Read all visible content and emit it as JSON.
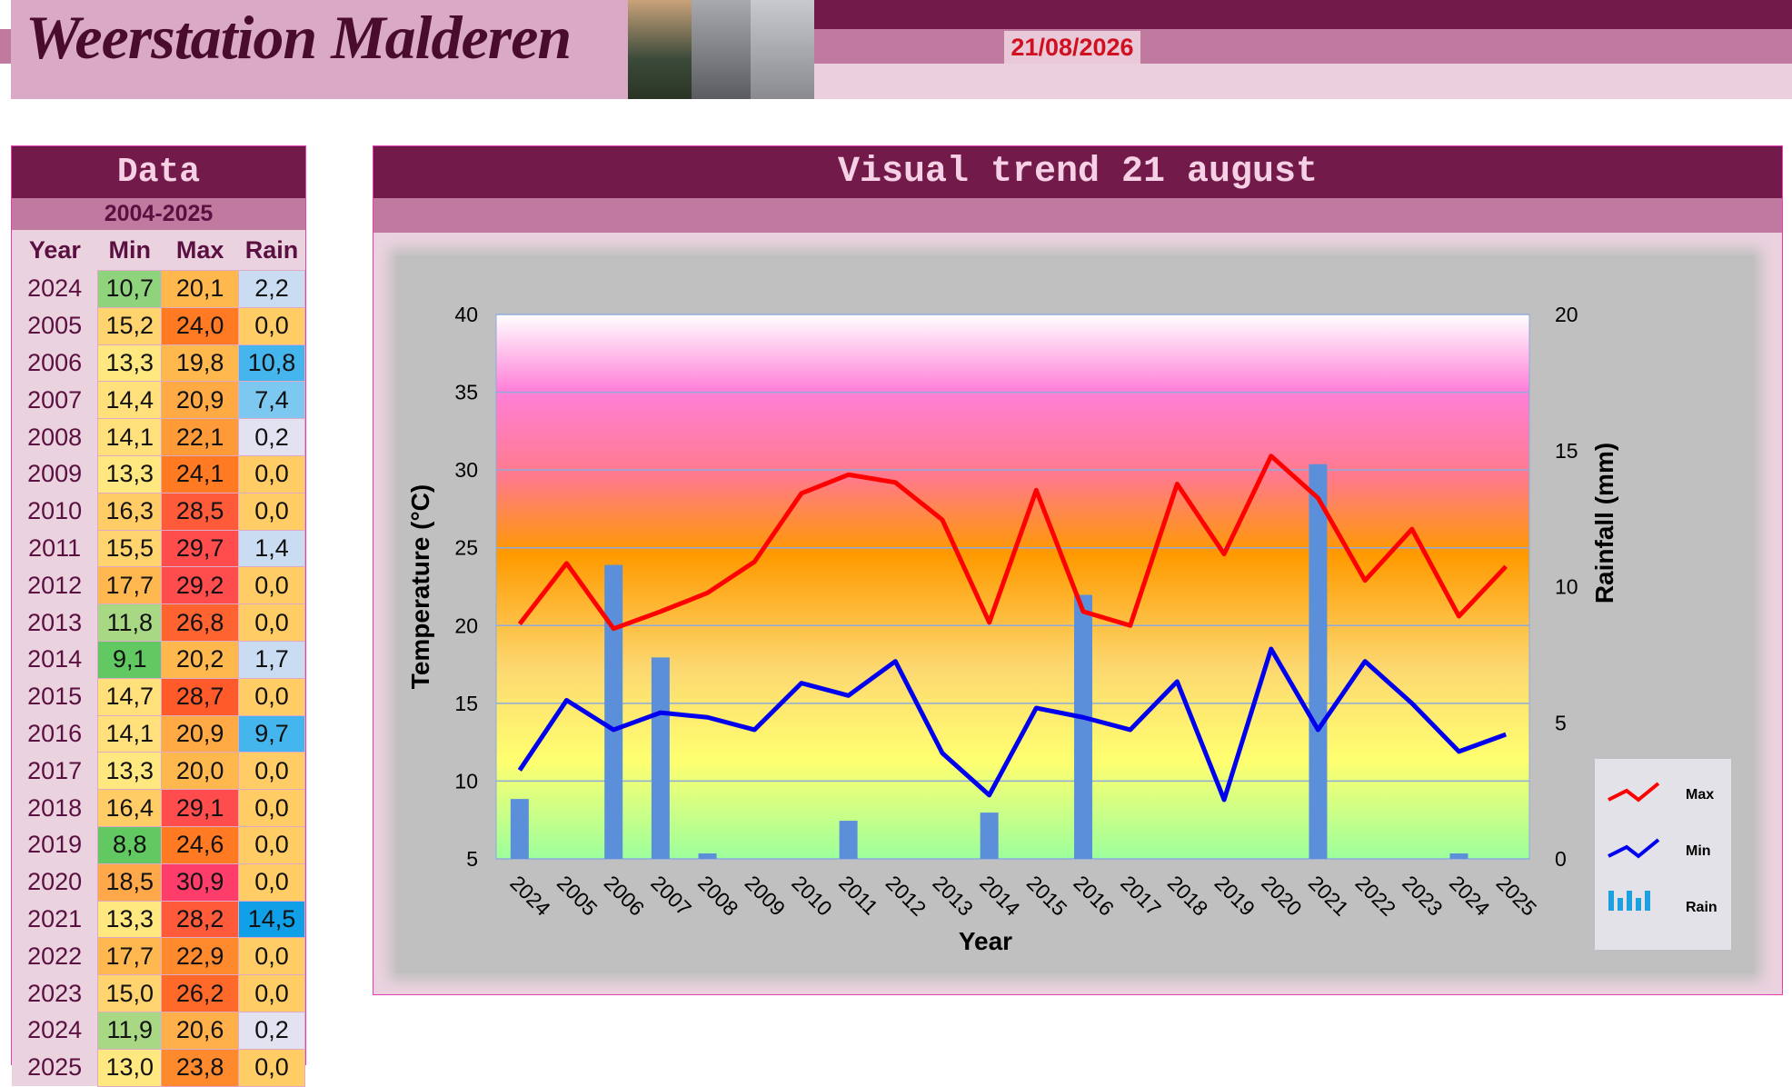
{
  "header": {
    "title": "Weerstation Malderen",
    "date": "21/08/2026"
  },
  "table": {
    "title": "Data",
    "period": "2004-2025",
    "columns": [
      "Year",
      "Min",
      "Max",
      "Rain"
    ],
    "rows": [
      [
        "2024",
        "10,7",
        "20,1",
        "2,2"
      ],
      [
        "2005",
        "15,2",
        "24,0",
        "0,0"
      ],
      [
        "2006",
        "13,3",
        "19,8",
        "10,8"
      ],
      [
        "2007",
        "14,4",
        "20,9",
        "7,4"
      ],
      [
        "2008",
        "14,1",
        "22,1",
        "0,2"
      ],
      [
        "2009",
        "13,3",
        "24,1",
        "0,0"
      ],
      [
        "2010",
        "16,3",
        "28,5",
        "0,0"
      ],
      [
        "2011",
        "15,5",
        "29,7",
        "1,4"
      ],
      [
        "2012",
        "17,7",
        "29,2",
        "0,0"
      ],
      [
        "2013",
        "11,8",
        "26,8",
        "0,0"
      ],
      [
        "2014",
        "9,1",
        "20,2",
        "1,7"
      ],
      [
        "2015",
        "14,7",
        "28,7",
        "0,0"
      ],
      [
        "2016",
        "14,1",
        "20,9",
        "9,7"
      ],
      [
        "2017",
        "13,3",
        "20,0",
        "0,0"
      ],
      [
        "2018",
        "16,4",
        "29,1",
        "0,0"
      ],
      [
        "2019",
        "8,8",
        "24,6",
        "0,0"
      ],
      [
        "2020",
        "18,5",
        "30,9",
        "0,0"
      ],
      [
        "2021",
        "13,3",
        "28,2",
        "14,5"
      ],
      [
        "2022",
        "17,7",
        "22,9",
        "0,0"
      ],
      [
        "2023",
        "15,0",
        "26,2",
        "0,0"
      ],
      [
        "2024",
        "11,9",
        "20,6",
        "0,2"
      ],
      [
        "2025",
        "13,0",
        "23,8",
        "0,0"
      ]
    ],
    "cell_colors": [
      [
        "#8fd47c",
        "#ffb84d",
        "#c9dcf2"
      ],
      [
        "#ffd36e",
        "#ff7a22",
        "#ffcc66"
      ],
      [
        "#ffe880",
        "#ffb84d",
        "#45b5ee"
      ],
      [
        "#ffe07a",
        "#ffaa44",
        "#7cc8f0"
      ],
      [
        "#ffe07a",
        "#ff9a38",
        "#e2e2f0"
      ],
      [
        "#ffe880",
        "#ff7a22",
        "#ffcc66"
      ],
      [
        "#ffcc66",
        "#ff5a3a",
        "#ffcc66"
      ],
      [
        "#ffd36e",
        "#ff4c4c",
        "#c9dcf2"
      ],
      [
        "#ffb850",
        "#ff4c4c",
        "#ffcc66"
      ],
      [
        "#a8d884",
        "#ff6430",
        "#ffcc66"
      ],
      [
        "#62c862",
        "#ffb84d",
        "#c9dcf2"
      ],
      [
        "#ffe07a",
        "#ff5a2a",
        "#ffcc66"
      ],
      [
        "#ffe07a",
        "#ffaa44",
        "#45b5ee"
      ],
      [
        "#ffe880",
        "#ffb84d",
        "#ffcc66"
      ],
      [
        "#ffcc66",
        "#ff4c4c",
        "#ffcc66"
      ],
      [
        "#62c862",
        "#ff7a22",
        "#ffcc66"
      ],
      [
        "#ffa84a",
        "#ff3d6a",
        "#ffcc66"
      ],
      [
        "#ffe880",
        "#ff5a3a",
        "#10a0e8"
      ],
      [
        "#ffb850",
        "#ff8a2e",
        "#ffcc66"
      ],
      [
        "#ffd36e",
        "#ff6a2a",
        "#ffcc66"
      ],
      [
        "#a8d884",
        "#ffb04a",
        "#e2e2f0"
      ],
      [
        "#ffe880",
        "#ff8a2e",
        "#ffcc66"
      ]
    ]
  },
  "chart_data": {
    "type": "line",
    "title": "Visual trend 21 august",
    "categories": [
      "2024",
      "2005",
      "2006",
      "2007",
      "2008",
      "2009",
      "2010",
      "2011",
      "2012",
      "2013",
      "2014",
      "2015",
      "2016",
      "2017",
      "2018",
      "2019",
      "2020",
      "2021",
      "2022",
      "2023",
      "2024",
      "2025"
    ],
    "series": [
      {
        "name": "Rain",
        "type": "bar",
        "axis": "y2",
        "color": "#5b8fd9",
        "values": [
          2.2,
          0,
          10.8,
          7.4,
          0.2,
          0,
          0,
          1.4,
          0,
          0,
          1.7,
          0,
          9.7,
          0,
          0,
          0,
          0,
          14.5,
          0,
          0,
          0.2,
          0
        ]
      },
      {
        "name": "Max",
        "color": "#ff0000",
        "values": [
          20.1,
          24.0,
          19.8,
          20.9,
          22.1,
          24.1,
          28.5,
          29.7,
          29.2,
          26.8,
          20.2,
          28.7,
          20.9,
          20.0,
          29.1,
          24.6,
          30.9,
          28.2,
          22.9,
          26.2,
          20.6,
          23.8
        ]
      },
      {
        "name": "Min",
        "color": "#0000ee",
        "values": [
          10.7,
          15.2,
          13.3,
          14.4,
          14.1,
          13.3,
          16.3,
          15.5,
          17.7,
          11.8,
          9.1,
          14.7,
          14.1,
          13.3,
          16.4,
          8.8,
          18.5,
          13.3,
          17.7,
          15.0,
          11.9,
          13.0
        ]
      }
    ],
    "xlabel": "Year",
    "ylabel": "Temperature (°C)",
    "y2label": "Rainfall (mm)",
    "ylim": [
      5,
      40
    ],
    "yticks": [
      5,
      10,
      15,
      20,
      25,
      30,
      35,
      40
    ],
    "y2lim": [
      0,
      20
    ],
    "y2ticks": [
      0,
      5,
      10,
      15,
      20
    ],
    "grid": true,
    "legend": "right"
  }
}
